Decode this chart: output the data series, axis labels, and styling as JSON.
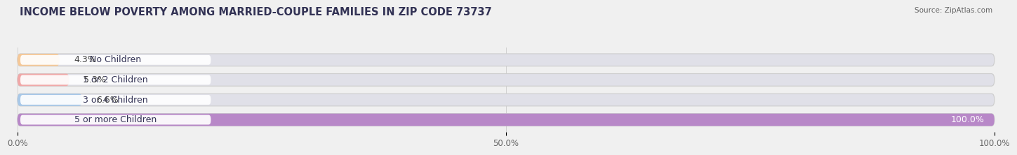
{
  "title": "INCOME BELOW POVERTY AMONG MARRIED-COUPLE FAMILIES IN ZIP CODE 73737",
  "source": "Source: ZipAtlas.com",
  "categories": [
    "No Children",
    "1 or 2 Children",
    "3 or 4 Children",
    "5 or more Children"
  ],
  "values": [
    4.3,
    5.3,
    6.6,
    100.0
  ],
  "bar_colors": [
    "#f5c898",
    "#f0a8a8",
    "#a8c8e8",
    "#b888c8"
  ],
  "label_colors": [
    "#333333",
    "#333333",
    "#333333",
    "#ffffff"
  ],
  "xlim": [
    0,
    100
  ],
  "xtick_labels": [
    "0.0%",
    "50.0%",
    "100.0%"
  ],
  "bg_color": "#f0f0f0",
  "bar_bg_color": "#e0e0e8",
  "title_color": "#333355",
  "title_fontsize": 10.5,
  "label_fontsize": 9,
  "value_fontsize": 9,
  "tick_fontsize": 8.5,
  "source_fontsize": 7.5
}
